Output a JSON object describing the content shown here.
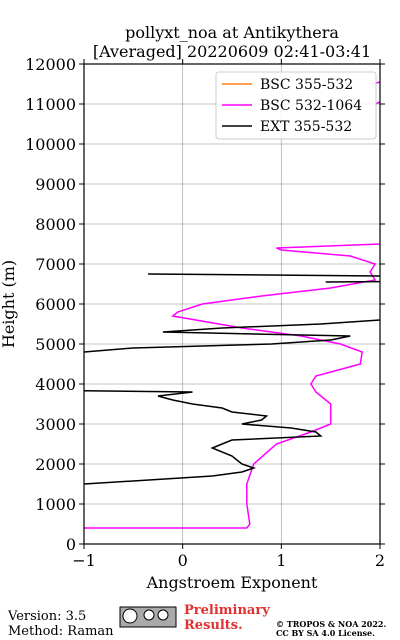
{
  "chart_data": {
    "type": "line",
    "title": "pollyxt_noa at Antikythera",
    "subtitle": "[Averaged] 20220609 02:41-03:41",
    "x_label": "Angstroem Exponent",
    "y_label": "Height (m)",
    "xlim": [
      -1,
      2
    ],
    "xticks": [
      {
        "value": -1,
        "label": "−1"
      },
      0,
      1,
      2
    ],
    "ylim": [
      0,
      12000
    ],
    "yticks": [
      0,
      1000,
      2000,
      3000,
      4000,
      5000,
      6000,
      7000,
      8000,
      9000,
      10000,
      11000,
      12000
    ],
    "grid": true,
    "legend": "upper right",
    "series": [
      {
        "name": "BSC 355-532",
        "color": "#ff7f0e",
        "x": [],
        "y": []
      },
      {
        "name": "BSC 532-1064",
        "color": "#ff00ff",
        "x": [
          -1,
          0.65,
          0.68,
          0.65,
          0.65,
          0.72,
          0.95,
          1.3,
          1.5,
          1.5,
          1.5,
          1.35,
          1.3,
          1.35,
          1.8,
          1.82,
          1.6,
          1.2,
          0.6,
          -0.1,
          -0.05,
          0.2,
          0.8,
          1.5,
          1.95,
          1.9,
          1.95,
          1.7,
          1.0,
          0.95,
          2.0,
          null,
          1.95,
          2.0,
          null,
          1.92,
          2.0
        ],
        "y": [
          400,
          400,
          500,
          1000,
          1500,
          2000,
          2500,
          2800,
          3000,
          3200,
          3500,
          3800,
          4000,
          4200,
          4500,
          4800,
          5000,
          5200,
          5400,
          5700,
          5800,
          6000,
          6200,
          6400,
          6600,
          6800,
          7000,
          7200,
          7350,
          7400,
          7500,
          null,
          11000,
          11050,
          null,
          11500,
          11550
        ]
      },
      {
        "name": "EXT 355-532",
        "color": "#000000",
        "x": [
          -1,
          0.3,
          0.6,
          0.72,
          0.6,
          0.5,
          0.3,
          0.4,
          0.5,
          1.4,
          1.35,
          1.1,
          0.6,
          0.8,
          0.85,
          0.5,
          0.4,
          0.1,
          -0.1,
          -0.25,
          0.1,
          -1,
          null,
          -1,
          -0.5,
          0.9,
          1.5,
          1.7,
          -0.2,
          0.4,
          1.4,
          2.0,
          null,
          1.45,
          2.0,
          null,
          2.0,
          -0.35
        ],
        "y": [
          1500,
          1700,
          1800,
          1900,
          2000,
          2200,
          2400,
          2500,
          2600,
          2700,
          2800,
          2900,
          3000,
          3100,
          3200,
          3300,
          3400,
          3500,
          3600,
          3700,
          3800,
          3830,
          null,
          4800,
          4900,
          5000,
          5100,
          5200,
          5300,
          5400,
          5500,
          5600,
          null,
          6550,
          6560,
          null,
          6700,
          6750
        ]
      }
    ]
  },
  "footer": {
    "version": "Version: 3.5",
    "method": "Method: Raman",
    "preliminary": "Preliminary",
    "results": "Results.",
    "copyright": "© TROPOS & NOA 2022.",
    "license": "CC BY SA 4.0 License."
  }
}
